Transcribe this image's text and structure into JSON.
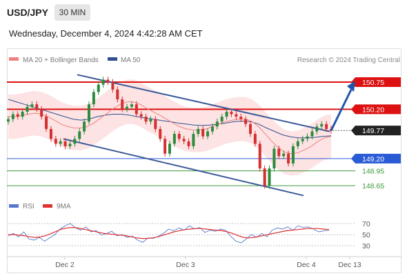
{
  "header": {
    "symbol": "USD/JPY",
    "timeframe": "30 MIN",
    "datetime": "Wednesday, December 4, 2024 4:42:28 AM CET"
  },
  "legend": {
    "ma20_label": "MA 20 + Bollinger Bands",
    "ma50_label": "MA 50",
    "ma20_color": "#f08080",
    "ma50_color": "#2f4f8f",
    "credit": "Research © 2024 Trading Central"
  },
  "rsi_legend": {
    "rsi_label": "RSI",
    "ma9_label": "9MA",
    "rsi_color": "#5577cc",
    "ma9_color": "#e03030"
  },
  "colors": {
    "up_candle": "#2e8b3e",
    "down_candle": "#d43030",
    "resistance": "#dd1111",
    "support": "#2a5bd7",
    "minor_support": "#3a9a3a",
    "channel": "#3b5998",
    "band_fill": "#fde0e0",
    "arrow": "#2255aa"
  },
  "chart_data": [
    {
      "type": "candlestick",
      "title": "USD/JPY",
      "timeframe": "30 MIN",
      "x_ticks": [
        "Dec 2",
        "Dec 3",
        "Dec 4",
        "Dec 13"
      ],
      "ylim": [
        148.4,
        151.1
      ],
      "price_levels": [
        {
          "label": "150.75",
          "value": 150.75,
          "kind": "resistance",
          "color": "#dd1111"
        },
        {
          "label": "150.20",
          "value": 150.2,
          "kind": "resistance",
          "color": "#dd1111"
        },
        {
          "label": "149.77",
          "value": 149.77,
          "kind": "current",
          "color": "#222222"
        },
        {
          "label": "149.20",
          "value": 149.2,
          "kind": "support",
          "color": "#2a5bd7"
        },
        {
          "label": "148.95",
          "value": 148.95,
          "kind": "support",
          "color": "#3a9a3a"
        },
        {
          "label": "148.65",
          "value": 148.65,
          "kind": "support",
          "color": "#3a9a3a"
        }
      ],
      "close_series": [
        150.0,
        150.1,
        150.05,
        150.15,
        150.25,
        150.3,
        150.2,
        150.05,
        149.8,
        149.6,
        149.5,
        149.55,
        149.45,
        149.5,
        149.6,
        149.75,
        149.95,
        150.3,
        150.55,
        150.7,
        150.8,
        150.75,
        150.6,
        150.4,
        150.2,
        150.25,
        150.3,
        150.1,
        150.05,
        149.95,
        150.0,
        149.8,
        149.6,
        149.3,
        149.5,
        149.7,
        149.6,
        149.55,
        149.45,
        149.7,
        149.8,
        149.65,
        149.75,
        149.85,
        149.95,
        150.05,
        150.15,
        150.1,
        150.05,
        150.0,
        149.9,
        149.7,
        149.5,
        149.0,
        148.65,
        149.0,
        149.4,
        149.25,
        149.3,
        149.1,
        149.45,
        149.55,
        149.6,
        149.65,
        149.75,
        149.85,
        149.9,
        149.8,
        149.77
      ],
      "ma20": [
        150.05,
        150.05,
        150.07,
        150.1,
        150.12,
        150.1,
        150.05,
        149.98,
        149.9,
        149.85,
        149.82,
        149.82,
        149.85,
        149.92,
        150.02,
        150.12,
        150.22,
        150.3,
        150.35,
        150.35,
        150.3,
        150.22,
        150.15,
        150.08,
        150.0,
        149.92,
        149.85,
        149.8,
        149.78,
        149.78,
        149.8,
        149.85,
        149.9,
        149.95,
        149.98,
        150.0,
        150.0,
        149.95,
        149.85,
        149.7,
        149.55,
        149.42,
        149.33,
        149.3,
        149.32,
        149.38,
        149.45,
        149.55,
        149.62,
        149.65
      ],
      "ma50": [
        150.4,
        150.35,
        150.3,
        150.25,
        150.2,
        150.15,
        150.1,
        150.05,
        150.0,
        149.98,
        150.0,
        150.05,
        150.08,
        150.1,
        150.1,
        150.08,
        150.05,
        150.02,
        150.0,
        149.97,
        149.95,
        149.92,
        149.9,
        149.88,
        149.87,
        149.88,
        149.9,
        149.92,
        149.95,
        149.96,
        149.95,
        149.9,
        149.82,
        149.75,
        149.68,
        149.64,
        149.62,
        149.62,
        149.63,
        149.65,
        149.66
      ],
      "bollinger_width": 0.45,
      "channel": {
        "upper": [
          150.9,
          149.75
        ],
        "lower": [
          149.6,
          148.45
        ]
      },
      "forecast_arrow": {
        "from": 149.77,
        "to": 150.75
      }
    },
    {
      "type": "line",
      "title": "RSI",
      "yticks": [
        30,
        50,
        70
      ],
      "ylim": [
        20,
        80
      ],
      "series": [
        {
          "name": "RSI",
          "color": "#5577cc",
          "values": [
            48,
            52,
            46,
            55,
            42,
            40,
            45,
            38,
            44,
            50,
            60,
            66,
            70,
            62,
            58,
            64,
            55,
            57,
            49,
            52,
            56,
            48,
            50,
            45,
            47,
            40,
            36,
            44,
            43,
            47,
            52,
            60,
            57,
            62,
            58,
            66,
            60,
            63,
            54,
            58,
            56,
            60,
            58,
            47,
            38,
            35,
            42,
            50,
            45,
            52,
            46,
            58,
            62,
            60,
            64,
            58,
            66,
            63,
            64,
            60,
            55,
            57,
            58
          ]
        },
        {
          "name": "9MA",
          "color": "#e03030",
          "values": [
            50,
            50,
            49,
            48,
            46,
            45,
            46,
            48,
            52,
            56,
            60,
            62,
            63,
            62,
            60,
            58,
            56,
            54,
            52,
            51,
            50,
            49,
            48,
            46,
            44,
            43,
            43,
            44,
            46,
            49,
            52,
            55,
            57,
            59,
            60,
            61,
            61,
            60,
            59,
            58,
            57,
            55,
            52,
            48,
            45,
            44,
            45,
            47,
            49,
            51,
            53,
            55,
            57,
            58,
            59,
            60,
            61,
            61,
            61,
            60,
            59
          ]
        }
      ]
    }
  ]
}
